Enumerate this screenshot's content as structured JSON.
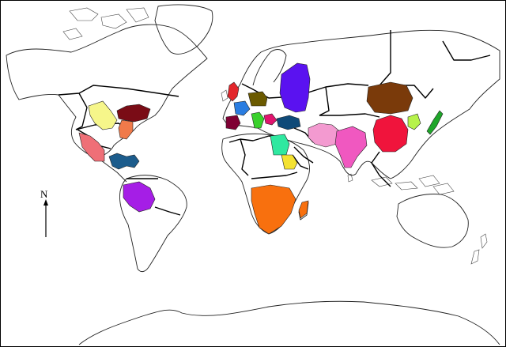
{
  "map": {
    "compass_label": "N",
    "colors": {
      "north_america_grey_region": "#f6f68a",
      "us_east_maroon": "#7a0c16",
      "us_southeast_salmon": "#f07a4a",
      "mexico": "#ef6f77",
      "caribbean": "#1c5c8c",
      "brazil": "#a51ee6",
      "britain": "#e3262b",
      "germany": "#6b5a00",
      "france": "#7f0034",
      "iberia_blue": "#2a7de1",
      "italy": "#3ad12c",
      "balkans": "#e0146e",
      "turkey": "#0f4a78",
      "russia_west": "#5a12f0",
      "egypt": "#2fe8a0",
      "sudan": "#f4e232",
      "southern_africa": "#f8700e",
      "madagascar": "#f8700e",
      "iran": "#f39ad0",
      "india": "#f058c0",
      "mongolia": "#7a3a0a",
      "china": "#f0143c",
      "korea": "#b6f24a",
      "japan": "#1fa62a"
    }
  }
}
